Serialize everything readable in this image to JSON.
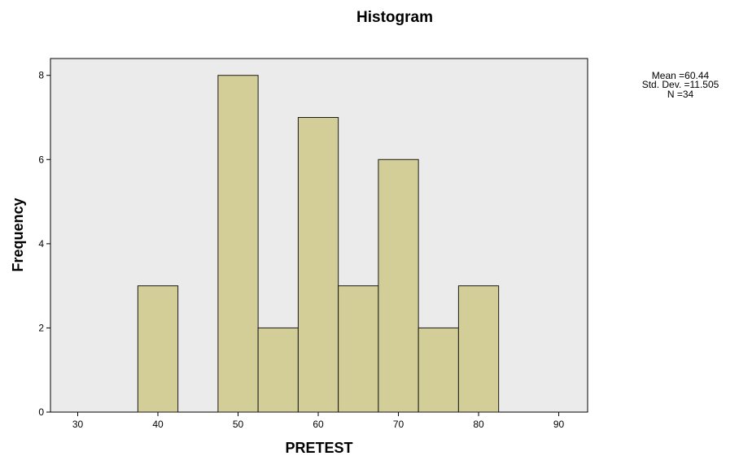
{
  "chart_data": {
    "type": "bar",
    "title": "Histogram",
    "xlabel": "PRETEST",
    "ylabel": "Frequency",
    "bin_width": 5,
    "bins": [
      {
        "center": 40,
        "value": 3
      },
      {
        "center": 50,
        "value": 8
      },
      {
        "center": 55,
        "value": 2
      },
      {
        "center": 60,
        "value": 7
      },
      {
        "center": 65,
        "value": 3
      },
      {
        "center": 70,
        "value": 6
      },
      {
        "center": 75,
        "value": 2
      },
      {
        "center": 80,
        "value": 3
      }
    ],
    "xlim": [
      26.6,
      93.6
    ],
    "ylim": [
      0,
      8.4
    ],
    "xticks": [
      30,
      40,
      50,
      60,
      70,
      80,
      90
    ],
    "yticks": [
      0,
      2,
      4,
      6,
      8
    ],
    "stats": {
      "mean": "Mean =60.44",
      "std": "Std. Dev. =11.505",
      "n": "N =34"
    },
    "grid": false,
    "colors": {
      "plot_background": "#ebebeb",
      "bar_fill": "#d3cd97",
      "bar_stroke": "#1a1a1a"
    }
  }
}
